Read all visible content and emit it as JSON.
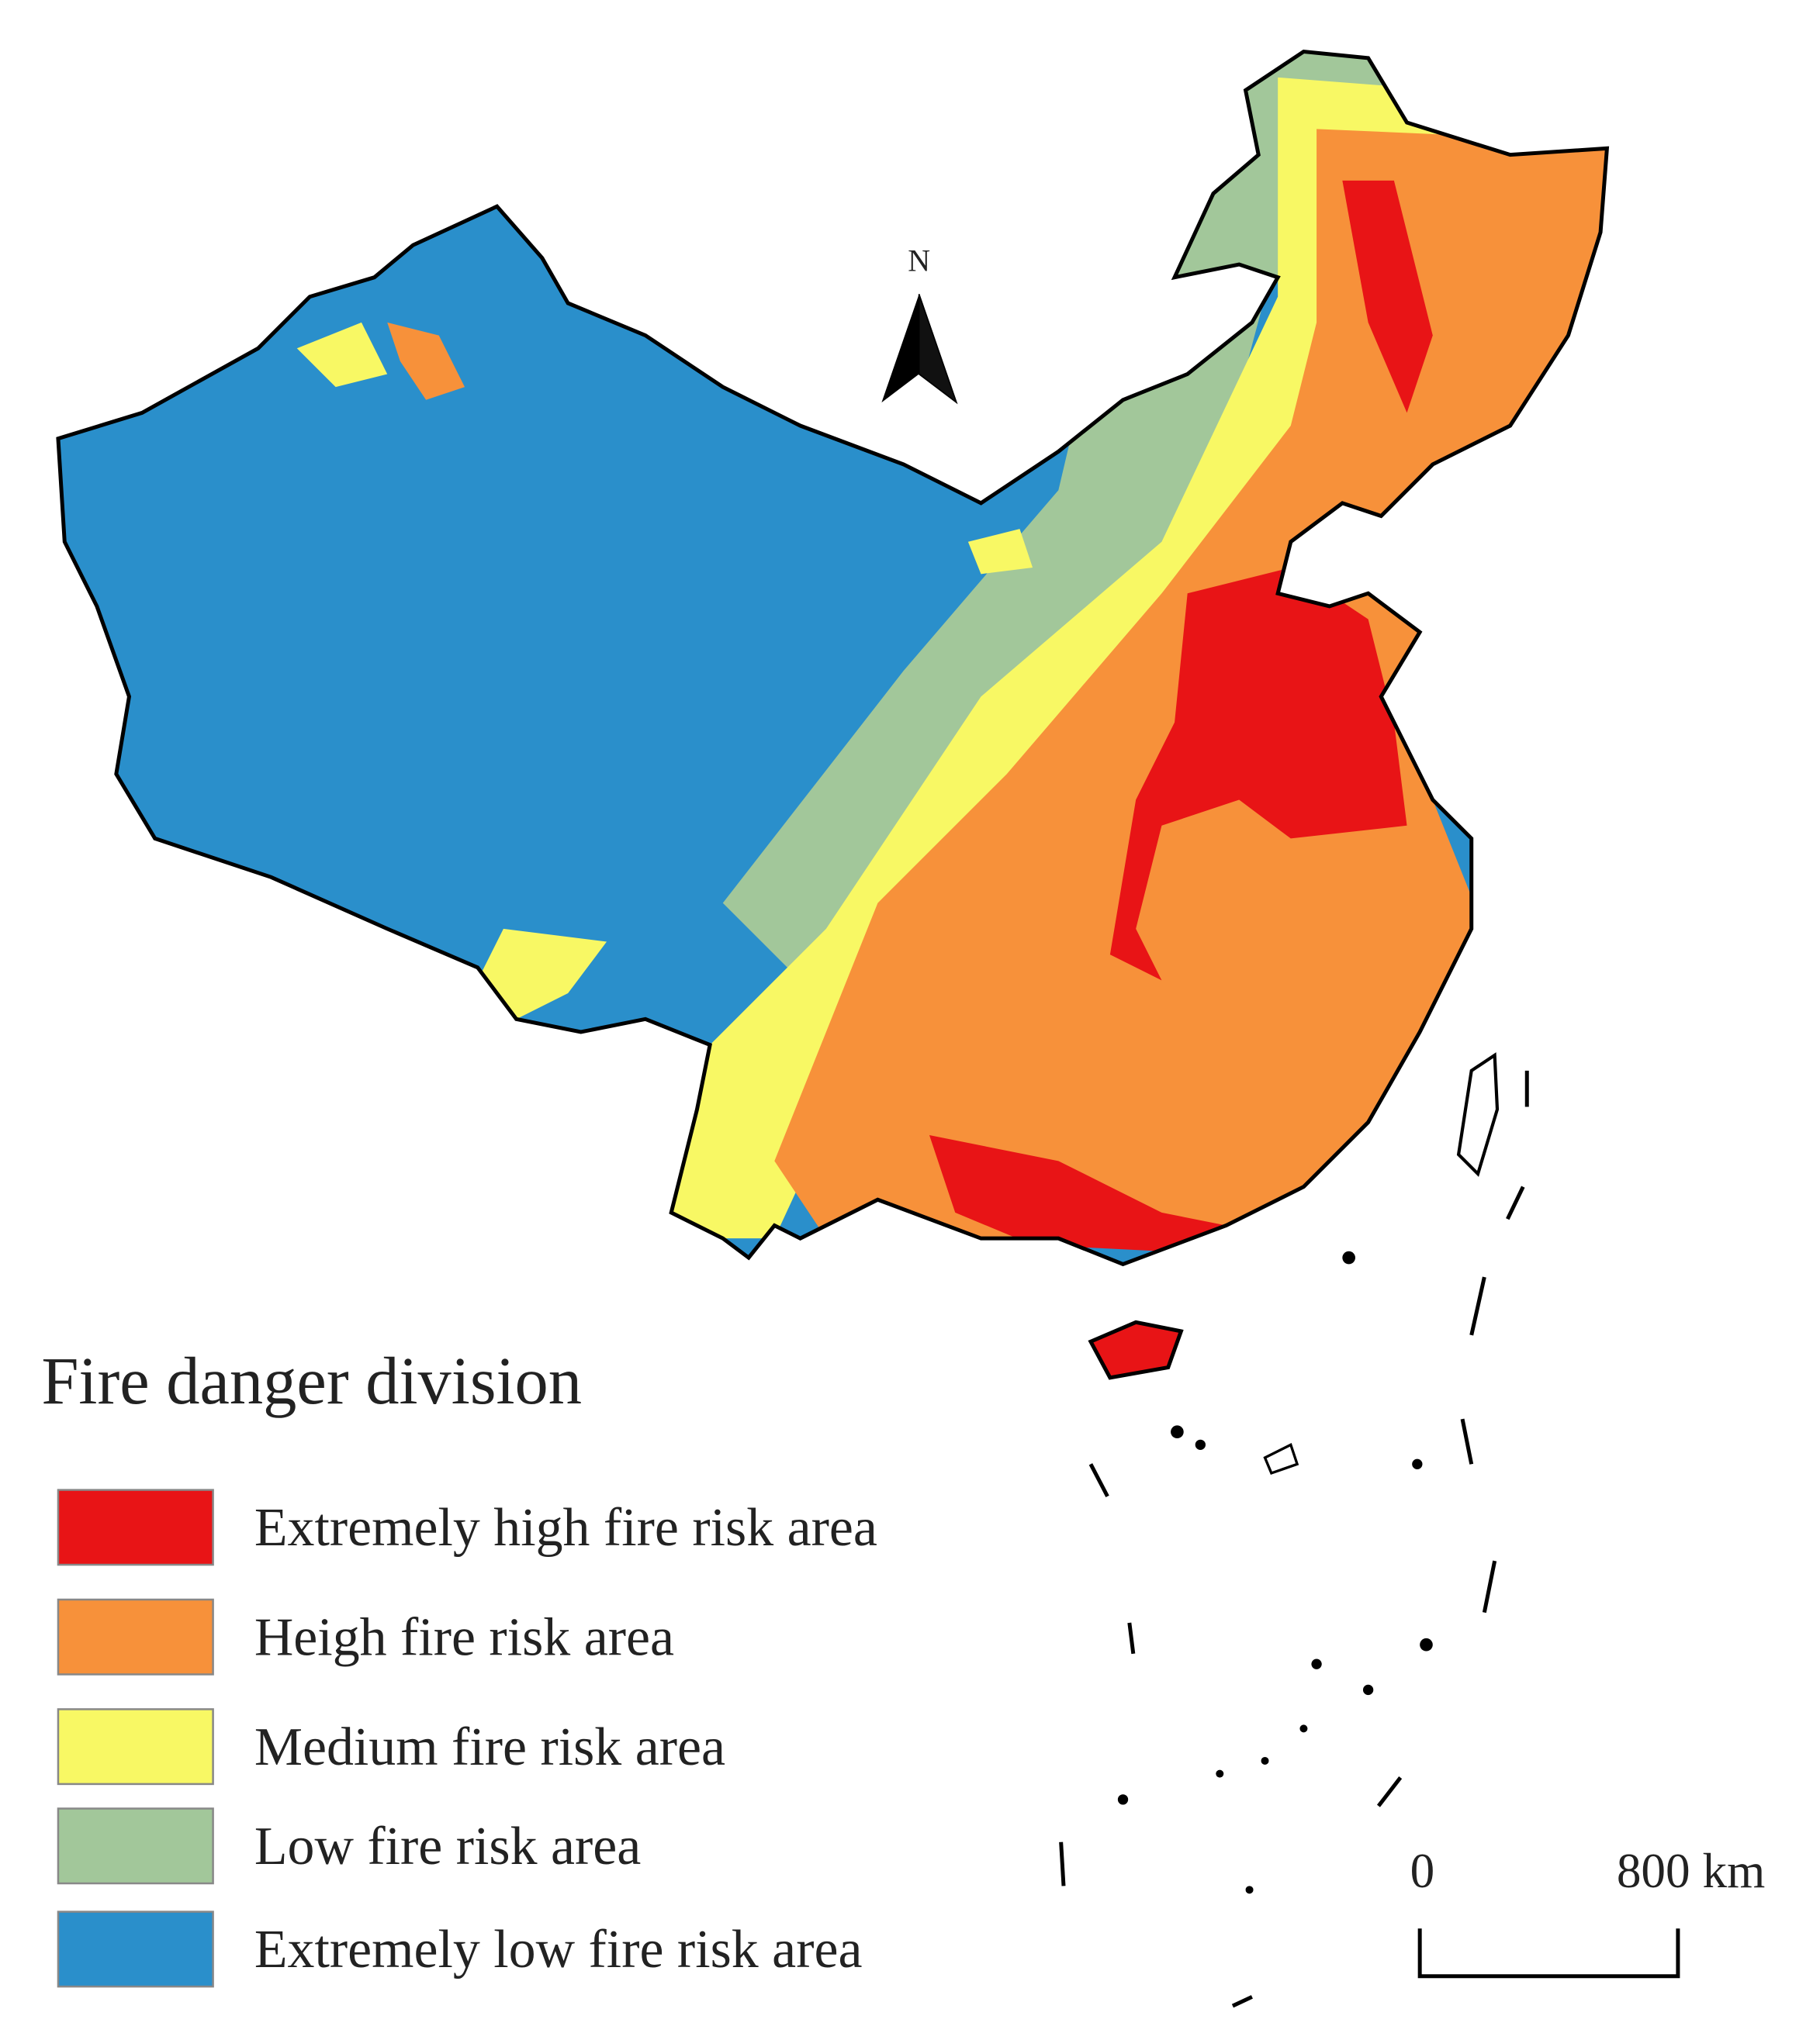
{
  "legend": {
    "title": "Fire danger division",
    "items": [
      {
        "label": "Extremely high fire risk area",
        "color": "#e81416"
      },
      {
        "label": "Heigh fire risk area",
        "color": "#f7913a"
      },
      {
        "label": "Medium fire risk area",
        "color": "#f8f864"
      },
      {
        "label": "Low fire risk area",
        "color": "#a2c79a"
      },
      {
        "label": "Extremely low fire risk area",
        "color": "#2a8fcb"
      }
    ]
  },
  "north": {
    "label": "N"
  },
  "scale_bar": {
    "labels": [
      "0",
      "800 km"
    ]
  }
}
